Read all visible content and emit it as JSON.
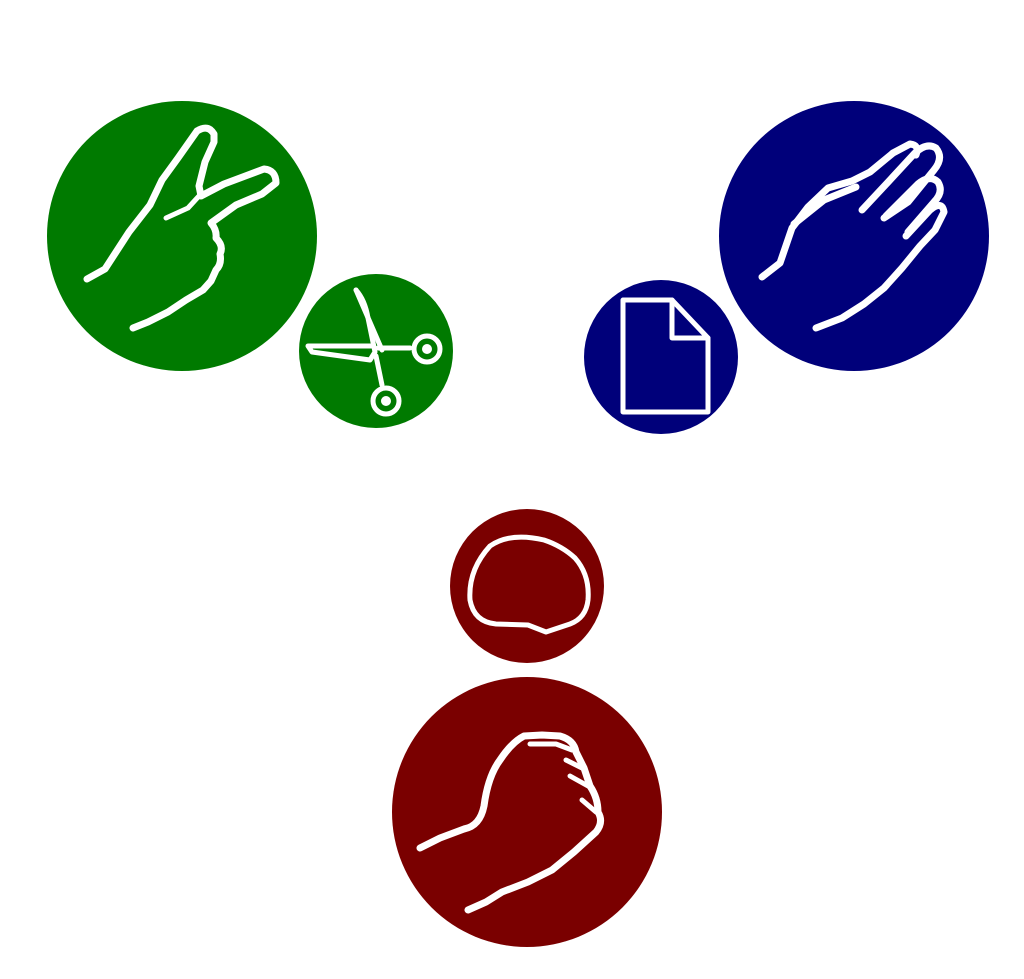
{
  "diagram": {
    "kind": "rock-paper-scissors",
    "groups": [
      {
        "id": "scissors",
        "hand_icon": "peace-hand-icon",
        "object_icon": "scissors-icon",
        "color": "#007A00"
      },
      {
        "id": "paper",
        "hand_icon": "open-hand-icon",
        "object_icon": "document-icon",
        "color": "#00007A"
      },
      {
        "id": "rock",
        "hand_icon": "fist-hand-icon",
        "object_icon": "rock-icon",
        "color": "#7A0000"
      }
    ]
  }
}
